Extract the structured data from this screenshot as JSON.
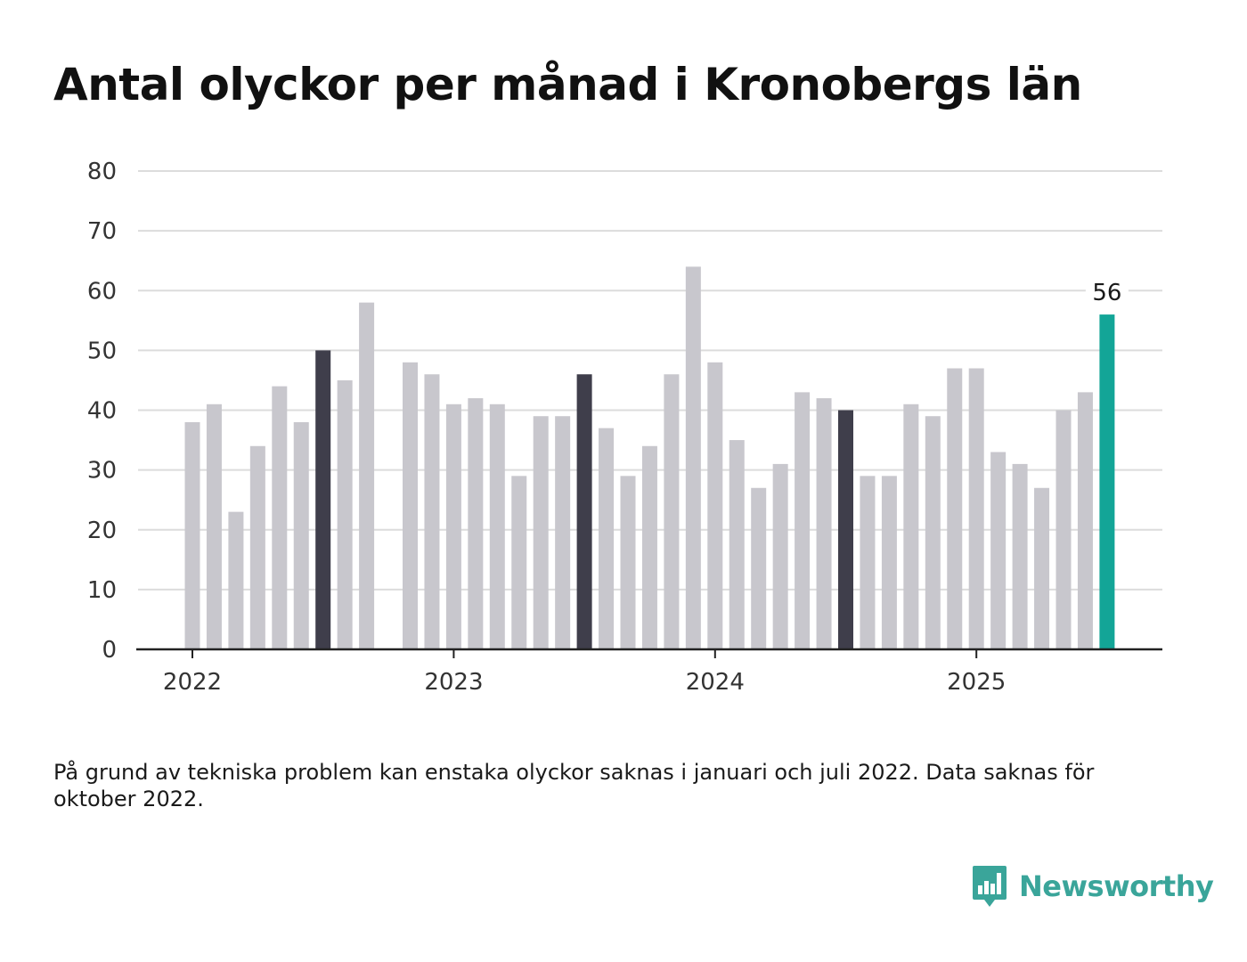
{
  "title": "Antal olyckor per månad i Kronobergs län",
  "note": "På grund av tekniska problem kan enstaka olyckor saknas i januari och juli 2022. Data saknas för oktober 2022.",
  "brand": {
    "name": "Newsworthy",
    "logo_icon": "bar-chart-speech-bubble-icon",
    "color": "#3aa59a"
  },
  "colors": {
    "bar_default": "#c8c7cd",
    "bar_july": "#3f3e4b",
    "bar_latest": "#13a597",
    "grid": "#dcdcdc",
    "axis": "#222222"
  },
  "chart_data": {
    "type": "bar",
    "title": "Antal olyckor per månad i Kronobergs län",
    "xlabel": "",
    "ylabel": "",
    "ylim": [
      0,
      80
    ],
    "yticks": [
      0,
      10,
      20,
      30,
      40,
      50,
      60,
      70,
      80
    ],
    "grid": true,
    "x_tick_labels": [
      {
        "label": "2022",
        "month": "2022-01"
      },
      {
        "label": "2023",
        "month": "2023-01"
      },
      {
        "label": "2024",
        "month": "2024-01"
      },
      {
        "label": "2025",
        "month": "2025-01"
      }
    ],
    "months": [
      "2022-01",
      "2022-02",
      "2022-03",
      "2022-04",
      "2022-05",
      "2022-06",
      "2022-07",
      "2022-08",
      "2022-09",
      "2022-10",
      "2022-11",
      "2022-12",
      "2023-01",
      "2023-02",
      "2023-03",
      "2023-04",
      "2023-05",
      "2023-06",
      "2023-07",
      "2023-08",
      "2023-09",
      "2023-10",
      "2023-11",
      "2023-12",
      "2024-01",
      "2024-02",
      "2024-03",
      "2024-04",
      "2024-05",
      "2024-06",
      "2024-07",
      "2024-08",
      "2024-09",
      "2024-10",
      "2024-11",
      "2024-12",
      "2025-01",
      "2025-02",
      "2025-03",
      "2025-04",
      "2025-05",
      "2025-06",
      "2025-07"
    ],
    "values": [
      38,
      41,
      23,
      34,
      44,
      38,
      50,
      45,
      58,
      null,
      48,
      46,
      41,
      42,
      41,
      29,
      39,
      39,
      46,
      37,
      29,
      34,
      46,
      64,
      48,
      35,
      27,
      31,
      43,
      42,
      40,
      29,
      29,
      41,
      39,
      47,
      47,
      33,
      31,
      27,
      40,
      43,
      56
    ],
    "highlighted_months": [
      "2022-07",
      "2023-07",
      "2024-07"
    ],
    "latest_month": "2025-07",
    "annotations": [
      {
        "month": "2025-07",
        "text": "56"
      }
    ]
  }
}
